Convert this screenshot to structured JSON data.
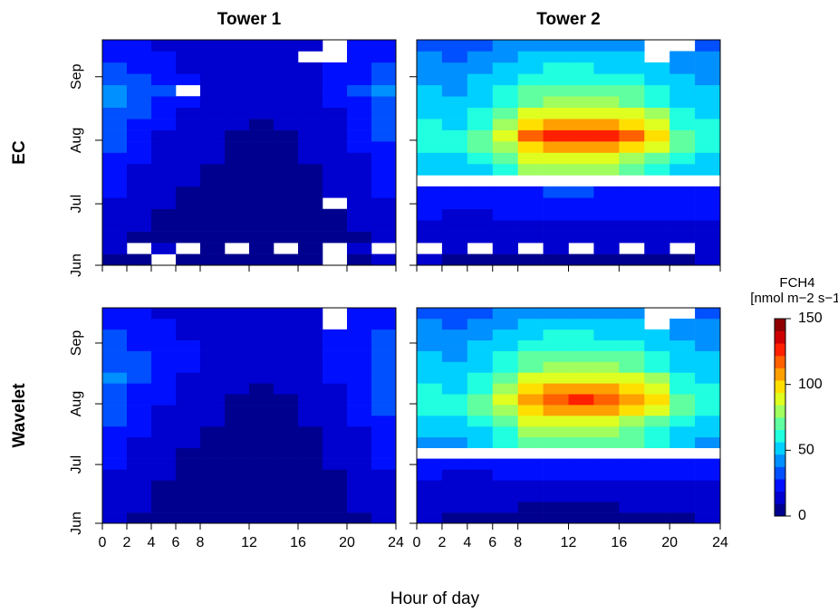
{
  "figure": {
    "xlabel": "Hour of day",
    "colorbar": {
      "title": "FCH4",
      "units": "[nmol m−2 s−1]",
      "zlim": [
        0,
        150
      ],
      "zticks": [
        0,
        50,
        100,
        150
      ],
      "colors": [
        "#00008f",
        "#0000cf",
        "#0010ff",
        "#0050ff",
        "#0090ff",
        "#00d0ff",
        "#20ffdf",
        "#60ff9f",
        "#a0ff5f",
        "#dfff20",
        "#ffdf00",
        "#ff9f00",
        "#ff6000",
        "#ff2000",
        "#cf0000",
        "#8f0000"
      ]
    }
  },
  "chart_data": [
    {
      "type": "heatmap",
      "title": "Tower 1",
      "row_label": "EC",
      "xbins": [
        0,
        2,
        4,
        6,
        8,
        10,
        12,
        14,
        16,
        18,
        20,
        22,
        24
      ],
      "ybins": [
        152,
        157.5,
        163,
        168.5,
        174,
        179.5,
        185,
        190.5,
        196,
        201.5,
        207,
        212.5,
        218,
        223.5,
        229,
        234.5,
        240,
        245.5,
        251,
        256.5,
        262
      ],
      "xlim": [
        0,
        24
      ],
      "ylim": [
        152,
        262
      ],
      "xticks": [
        0,
        2,
        4,
        6,
        8,
        12,
        16,
        20,
        24
      ],
      "yticks": [
        {
          "value": 152,
          "label": "Jun"
        },
        {
          "value": 182,
          "label": "Jul"
        },
        {
          "value": 213,
          "label": "Aug"
        },
        {
          "value": 244,
          "label": "Sep"
        }
      ],
      "xtick_labels": false,
      "ytick_labels": true,
      "values": [
        [
          8,
          6,
          null,
          5,
          6,
          5,
          4,
          5,
          6,
          null,
          8,
          10
        ],
        [
          12,
          null,
          10,
          null,
          8,
          null,
          9,
          null,
          7,
          null,
          12,
          null
        ],
        [
          10,
          8,
          7,
          6,
          5,
          5,
          4,
          5,
          6,
          8,
          9,
          12
        ],
        [
          12,
          10,
          8,
          6,
          5,
          4,
          4,
          5,
          6,
          7,
          10,
          14
        ],
        [
          15,
          12,
          9,
          7,
          6,
          5,
          5,
          5,
          6,
          8,
          12,
          16
        ],
        [
          18,
          14,
          10,
          8,
          6,
          5,
          5,
          6,
          7,
          null,
          12,
          18
        ],
        [
          20,
          15,
          12,
          9,
          7,
          6,
          5,
          6,
          8,
          10,
          14,
          20
        ],
        [
          22,
          16,
          12,
          10,
          8,
          6,
          6,
          7,
          8,
          11,
          15,
          22
        ],
        [
          25,
          18,
          14,
          11,
          9,
          7,
          6,
          7,
          9,
          12,
          16,
          24
        ],
        [
          28,
          20,
          15,
          12,
          10,
          8,
          7,
          8,
          10,
          13,
          18,
          26
        ],
        [
          30,
          22,
          16,
          12,
          10,
          8,
          7,
          8,
          10,
          14,
          20,
          28
        ],
        [
          32,
          25,
          18,
          14,
          11,
          9,
          8,
          9,
          11,
          15,
          22,
          30
        ],
        [
          30,
          26,
          20,
          15,
          12,
          10,
          9,
          10,
          12,
          16,
          24,
          30
        ],
        [
          35,
          30,
          24,
          18,
          14,
          12,
          10,
          12,
          14,
          18,
          26,
          32
        ],
        [
          38,
          32,
          26,
          20,
          15,
          12,
          11,
          12,
          15,
          20,
          28,
          35
        ],
        [
          40,
          35,
          30,
          null,
          18,
          14,
          12,
          14,
          16,
          22,
          30,
          38
        ],
        [
          35,
          30,
          26,
          20,
          16,
          14,
          12,
          14,
          16,
          22,
          28,
          34
        ],
        [
          30,
          26,
          22,
          18,
          15,
          12,
          11,
          12,
          15,
          20,
          26,
          30
        ],
        [
          28,
          24,
          20,
          16,
          14,
          12,
          10,
          12,
          null,
          null,
          24,
          28
        ],
        [
          26,
          22,
          18,
          15,
          13,
          11,
          10,
          11,
          14,
          null,
          22,
          26
        ]
      ]
    },
    {
      "type": "heatmap",
      "title": "Tower 2",
      "xbins": [
        0,
        2,
        4,
        6,
        8,
        10,
        12,
        14,
        16,
        18,
        20,
        22,
        24
      ],
      "ybins": [
        152,
        157.5,
        163,
        168.5,
        174,
        179.5,
        185,
        190.5,
        196,
        201.5,
        207,
        212.5,
        218,
        223.5,
        229,
        234.5,
        240,
        245.5,
        251,
        256.5,
        262
      ],
      "xlim": [
        0,
        24
      ],
      "ylim": [
        152,
        262
      ],
      "xticks": [
        0,
        2,
        4,
        6,
        8,
        12,
        16,
        20,
        24
      ],
      "yticks": [
        152,
        182,
        213,
        244
      ],
      "xtick_labels": false,
      "ytick_labels": false,
      "values": [
        [
          10,
          8,
          8,
          7,
          6,
          6,
          6,
          6,
          7,
          8,
          9,
          10
        ],
        [
          null,
          12,
          null,
          10,
          null,
          10,
          null,
          10,
          null,
          11,
          null,
          12
        ],
        [
          15,
          14,
          12,
          12,
          12,
          12,
          12,
          12,
          12,
          13,
          14,
          15
        ],
        [
          18,
          16,
          15,
          15,
          16,
          17,
          17,
          17,
          16,
          16,
          16,
          18
        ],
        [
          20,
          18,
          18,
          20,
          22,
          22,
          22,
          22,
          21,
          20,
          19,
          20
        ],
        [
          22,
          20,
          20,
          22,
          25,
          26,
          26,
          25,
          24,
          22,
          21,
          22
        ],
        [
          24,
          22,
          22,
          25,
          28,
          30,
          30,
          28,
          26,
          24,
          22,
          24
        ],
        [
          null,
          null,
          null,
          null,
          null,
          null,
          null,
          null,
          null,
          null,
          null,
          null
        ],
        [
          50,
          48,
          55,
          65,
          75,
          80,
          80,
          78,
          72,
          65,
          55,
          50
        ],
        [
          55,
          52,
          60,
          72,
          85,
          90,
          90,
          88,
          82,
          72,
          60,
          55
        ],
        [
          60,
          58,
          68,
          82,
          100,
          110,
          110,
          108,
          100,
          85,
          68,
          60
        ],
        [
          62,
          60,
          72,
          90,
          115,
          125,
          128,
          125,
          118,
          100,
          72,
          62
        ],
        [
          58,
          55,
          65,
          80,
          100,
          108,
          110,
          108,
          100,
          88,
          65,
          58
        ],
        [
          55,
          52,
          60,
          72,
          85,
          90,
          90,
          88,
          85,
          75,
          60,
          55
        ],
        [
          52,
          50,
          55,
          62,
          72,
          78,
          78,
          76,
          72,
          65,
          55,
          52
        ],
        [
          48,
          46,
          50,
          58,
          68,
          72,
          72,
          70,
          68,
          60,
          52,
          48
        ],
        [
          45,
          44,
          48,
          55,
          62,
          65,
          65,
          64,
          62,
          56,
          48,
          45
        ],
        [
          40,
          40,
          44,
          50,
          55,
          58,
          58,
          56,
          55,
          50,
          44,
          40
        ],
        [
          38,
          36,
          40,
          45,
          50,
          52,
          52,
          50,
          48,
          null,
          40,
          38
        ],
        [
          30,
          30,
          34,
          38,
          42,
          44,
          44,
          42,
          40,
          null,
          null,
          30
        ]
      ]
    },
    {
      "type": "heatmap",
      "row_label": "Wavelet",
      "xbins": [
        0,
        2,
        4,
        6,
        8,
        10,
        12,
        14,
        16,
        18,
        20,
        22,
        24
      ],
      "ybins": [
        152,
        157.5,
        163,
        168.5,
        174,
        179.5,
        185,
        190.5,
        196,
        201.5,
        207,
        212.5,
        218,
        223.5,
        229,
        234.5,
        240,
        245.5,
        251,
        256.5,
        262
      ],
      "xlim": [
        0,
        24
      ],
      "ylim": [
        152,
        262
      ],
      "xticks": [
        0,
        2,
        4,
        6,
        8,
        12,
        16,
        20,
        24
      ],
      "yticks": [
        {
          "value": 152,
          "label": "Jun"
        },
        {
          "value": 182,
          "label": "Jul"
        },
        {
          "value": 213,
          "label": "Aug"
        },
        {
          "value": 244,
          "label": "Sep"
        }
      ],
      "xtick_labels": true,
      "ytick_labels": true,
      "values": [
        [
          10,
          8,
          6,
          5,
          5,
          5,
          4,
          5,
          5,
          6,
          8,
          10
        ],
        [
          12,
          10,
          8,
          6,
          5,
          5,
          4,
          5,
          6,
          7,
          10,
          12
        ],
        [
          14,
          10,
          8,
          6,
          5,
          4,
          4,
          5,
          6,
          8,
          10,
          14
        ],
        [
          16,
          12,
          9,
          7,
          5,
          4,
          4,
          5,
          6,
          8,
          12,
          16
        ],
        [
          18,
          14,
          10,
          8,
          6,
          5,
          5,
          5,
          7,
          9,
          13,
          18
        ],
        [
          20,
          15,
          11,
          8,
          6,
          5,
          5,
          6,
          7,
          10,
          14,
          20
        ],
        [
          22,
          16,
          12,
          9,
          7,
          6,
          5,
          6,
          8,
          11,
          15,
          22
        ],
        [
          24,
          18,
          13,
          10,
          8,
          6,
          6,
          7,
          9,
          12,
          16,
          24
        ],
        [
          28,
          20,
          15,
          12,
          9,
          7,
          6,
          7,
          9,
          13,
          18,
          26
        ],
        [
          30,
          22,
          16,
          12,
          10,
          8,
          7,
          8,
          10,
          14,
          20,
          28
        ],
        [
          32,
          24,
          18,
          13,
          10,
          8,
          7,
          8,
          10,
          15,
          22,
          30
        ],
        [
          34,
          26,
          20,
          14,
          11,
          9,
          8,
          9,
          11,
          16,
          24,
          32
        ],
        [
          36,
          28,
          22,
          16,
          12,
          10,
          9,
          10,
          12,
          18,
          26,
          34
        ],
        [
          38,
          30,
          24,
          18,
          14,
          12,
          10,
          12,
          14,
          20,
          28,
          36
        ],
        [
          36,
          30,
          26,
          20,
          15,
          12,
          11,
          12,
          15,
          20,
          28,
          35
        ],
        [
          34,
          30,
          26,
          20,
          16,
          13,
          12,
          13,
          16,
          22,
          28,
          34
        ],
        [
          32,
          28,
          24,
          19,
          15,
          13,
          12,
          13,
          16,
          21,
          27,
          32
        ],
        [
          30,
          26,
          22,
          18,
          15,
          12,
          11,
          12,
          15,
          20,
          26,
          30
        ],
        [
          28,
          24,
          20,
          16,
          14,
          12,
          10,
          12,
          14,
          null,
          24,
          28
        ],
        [
          26,
          22,
          18,
          15,
          13,
          11,
          10,
          11,
          14,
          null,
          22,
          26
        ]
      ]
    },
    {
      "type": "heatmap",
      "xbins": [
        0,
        2,
        4,
        6,
        8,
        10,
        12,
        14,
        16,
        18,
        20,
        22,
        24
      ],
      "ybins": [
        152,
        157.5,
        163,
        168.5,
        174,
        179.5,
        185,
        190.5,
        196,
        201.5,
        207,
        212.5,
        218,
        223.5,
        229,
        234.5,
        240,
        245.5,
        251,
        256.5,
        262
      ],
      "xlim": [
        0,
        24
      ],
      "ylim": [
        152,
        262
      ],
      "xticks": [
        0,
        2,
        4,
        6,
        8,
        12,
        16,
        20,
        24
      ],
      "yticks": [
        152,
        182,
        213,
        244
      ],
      "xtick_labels": true,
      "ytick_labels": false,
      "values": [
        [
          10,
          8,
          8,
          7,
          6,
          6,
          6,
          6,
          7,
          8,
          9,
          10
        ],
        [
          12,
          11,
          10,
          10,
          9,
          9,
          9,
          9,
          10,
          10,
          11,
          12
        ],
        [
          15,
          14,
          13,
          12,
          12,
          12,
          12,
          12,
          12,
          13,
          14,
          15
        ],
        [
          18,
          16,
          15,
          15,
          16,
          16,
          16,
          16,
          16,
          16,
          16,
          18
        ],
        [
          20,
          18,
          18,
          20,
          21,
          22,
          22,
          22,
          21,
          20,
          19,
          20
        ],
        [
          22,
          20,
          20,
          22,
          24,
          25,
          25,
          25,
          24,
          22,
          21,
          22
        ],
        [
          null,
          null,
          null,
          null,
          null,
          null,
          null,
          null,
          null,
          null,
          null,
          null
        ],
        [
          45,
          42,
          48,
          58,
          68,
          72,
          72,
          70,
          66,
          60,
          50,
          45
        ],
        [
          50,
          48,
          55,
          65,
          75,
          80,
          80,
          78,
          72,
          65,
          55,
          50
        ],
        [
          55,
          52,
          60,
          72,
          85,
          92,
          92,
          90,
          84,
          74,
          60,
          55
        ],
        [
          60,
          58,
          68,
          82,
          100,
          108,
          110,
          108,
          100,
          86,
          68,
          60
        ],
        [
          62,
          60,
          70,
          88,
          110,
          120,
          122,
          120,
          112,
          96,
          72,
          62
        ],
        [
          58,
          55,
          65,
          80,
          100,
          108,
          110,
          108,
          100,
          88,
          65,
          58
        ],
        [
          55,
          52,
          60,
          72,
          85,
          90,
          90,
          88,
          85,
          75,
          60,
          55
        ],
        [
          52,
          50,
          55,
          62,
          72,
          78,
          78,
          76,
          72,
          65,
          55,
          52
        ],
        [
          48,
          46,
          50,
          58,
          68,
          72,
          72,
          70,
          68,
          60,
          52,
          48
        ],
        [
          45,
          44,
          48,
          55,
          62,
          65,
          65,
          64,
          62,
          56,
          48,
          45
        ],
        [
          40,
          40,
          44,
          50,
          55,
          58,
          58,
          56,
          55,
          50,
          44,
          40
        ],
        [
          38,
          36,
          40,
          45,
          50,
          52,
          52,
          50,
          48,
          null,
          40,
          38
        ],
        [
          30,
          30,
          34,
          38,
          42,
          44,
          44,
          42,
          40,
          null,
          null,
          30
        ]
      ]
    }
  ]
}
